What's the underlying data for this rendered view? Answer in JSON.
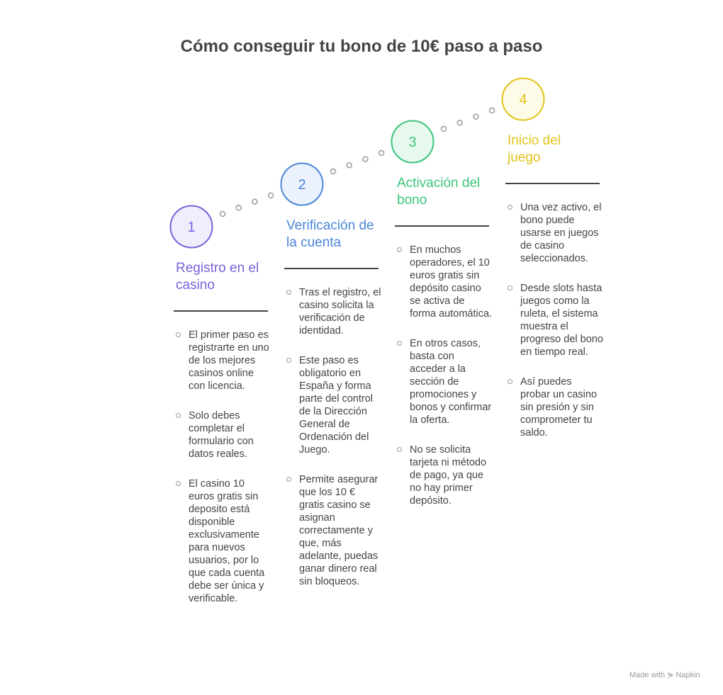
{
  "title": "Cómo conseguir tu bono de 10€ paso a paso",
  "steps": [
    {
      "number": "1",
      "title": "Registro en el casino",
      "color": "#7b61d9",
      "fill": "#f0eefc",
      "bullets": [
        "El primer paso es registrarte en uno de los mejores casinos online con licencia.",
        "Solo debes completar el formulario con datos reales.",
        "El casino 10 euros gratis sin deposito está disponible exclusivamente para nuevos usuarios, por lo que cada cuenta debe ser única y verificable."
      ]
    },
    {
      "number": "2",
      "title": "Verificación de la cuenta",
      "color": "#4a86d8",
      "fill": "#ebf2fd",
      "bullets": [
        "Tras el registro, el casino solicita la verificación de identidad.",
        "Este paso es obligatorio en España y forma parte del control de la Dirección General de Ordenación del Juego.",
        "Permite asegurar que los 10 € gratis casino se asignan correctamente y que, más adelante, puedas ganar dinero real sin bloqueos."
      ]
    },
    {
      "number": "3",
      "title": "Activación del bono",
      "color": "#3cc47c",
      "fill": "#e7f9ef",
      "bullets": [
        "En muchos operadores, el 10 euros gratis sin depósito casino se activa de forma automática.",
        "En otros casos, basta con acceder a la sección de promociones y bonos y confirmar la oferta.",
        "No se solicita tarjeta ni método de pago, ya que no hay primer depósito."
      ]
    },
    {
      "number": "4",
      "title": "Inicio del juego",
      "color": "#e2c21a",
      "fill": "#fdfbe7",
      "bullets": [
        "Una vez activo, el bono puede usarse en juegos de casino seleccionados.",
        "Desde slots hasta juegos como la ruleta, el sistema muestra el progreso del bono en tiempo real.",
        "Así puedes probar un casino sin presión y sin comprometer tu saldo."
      ]
    }
  ],
  "footer": {
    "made_with": "Made with",
    "brand": "Napkin"
  }
}
